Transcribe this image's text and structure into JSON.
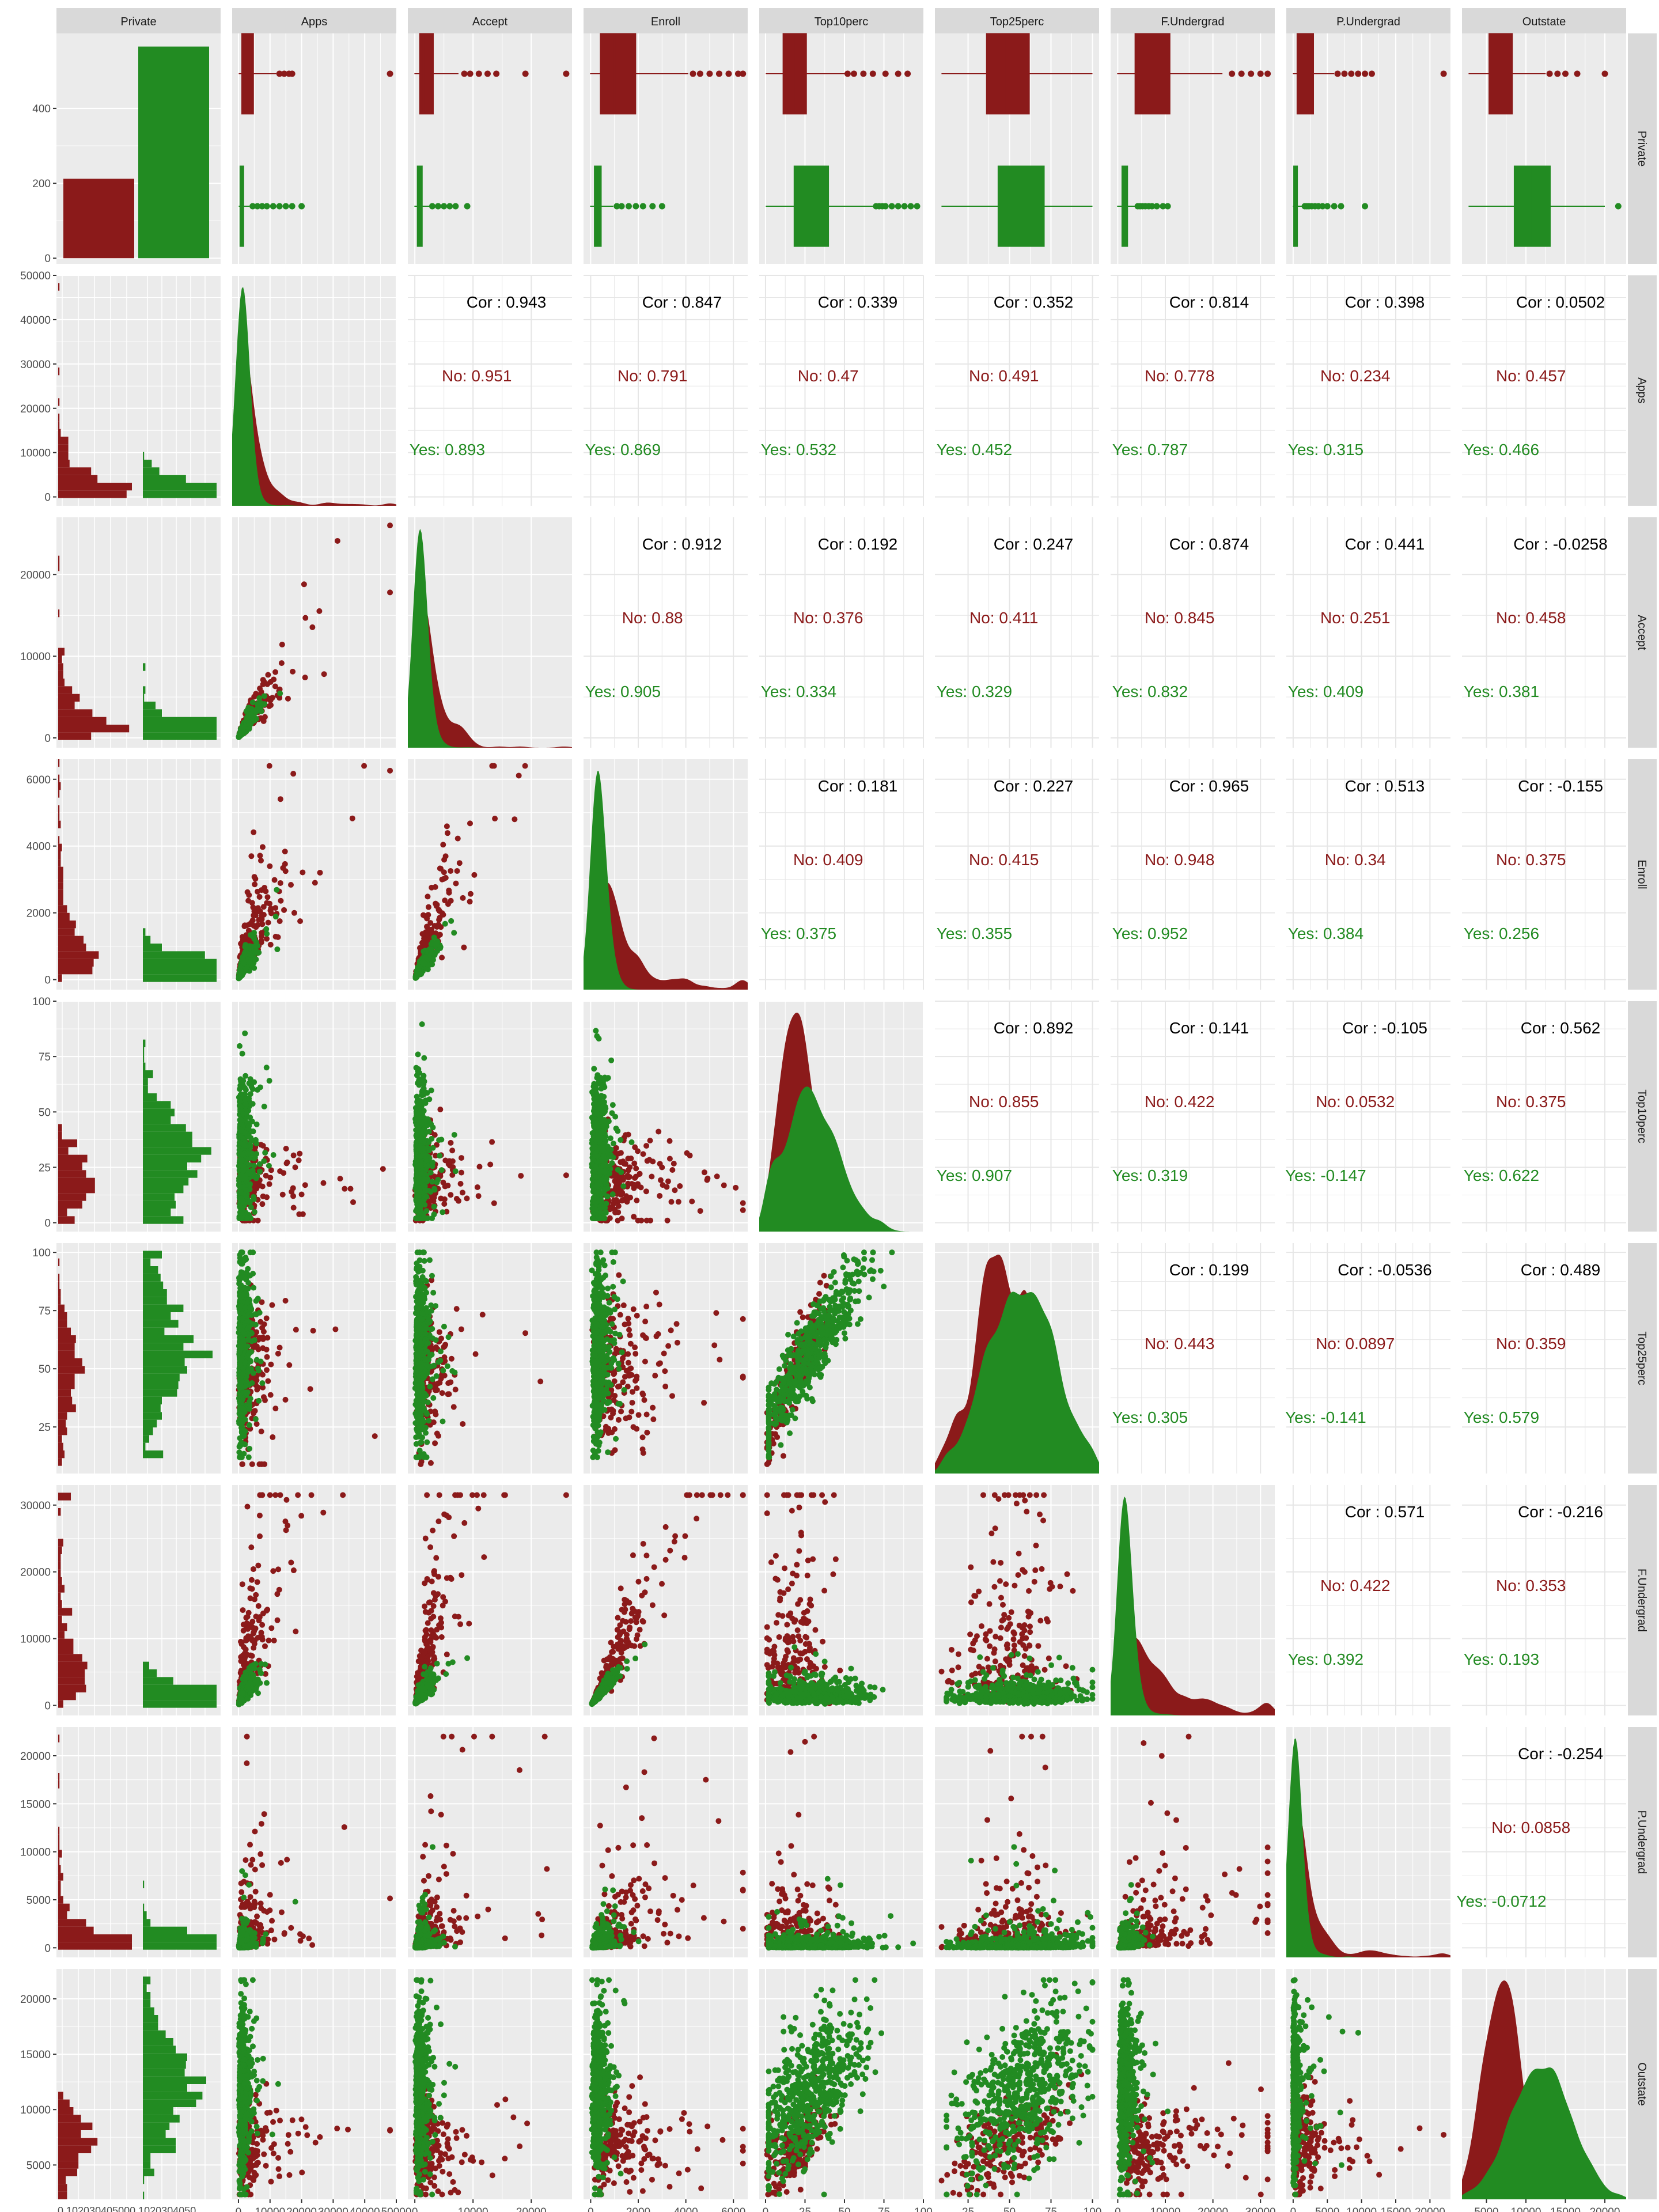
{
  "colors": {
    "no": "#8B1A1A",
    "yes": "#228B22",
    "panel_bg": "#EBEBEB",
    "strip_bg": "#D9D9D9",
    "grid": "#FFFFFF",
    "text": "#4D4D4D"
  },
  "chart_data": {
    "type": "scatterplot-matrix",
    "variables": [
      "Private",
      "Apps",
      "Accept",
      "Enroll",
      "Top10perc",
      "Top25perc",
      "F.Undergrad",
      "P.Undergrad",
      "Outstate"
    ],
    "groups": [
      "No",
      "Yes"
    ],
    "group_colors": {
      "No": "#8B1A1A",
      "Yes": "#228B22"
    },
    "private_counts": {
      "No": 212,
      "Yes": 565
    },
    "row_axis": {
      "Private": {
        "ticks": [
          0,
          200,
          400
        ],
        "range": [
          -15,
          600
        ]
      },
      "Apps": {
        "ticks": [
          0,
          10000,
          20000,
          30000,
          40000,
          50000
        ],
        "range": [
          -2000,
          50000
        ]
      },
      "Accept": {
        "ticks": [
          0,
          10000,
          20000
        ],
        "range": [
          -1200,
          27000
        ]
      },
      "Enroll": {
        "ticks": [
          0,
          2000,
          4000,
          6000
        ],
        "range": [
          -300,
          6600
        ]
      },
      "Top10perc": {
        "ticks": [
          0,
          25,
          50,
          75,
          100
        ],
        "range": [
          -4,
          100
        ]
      },
      "Top25perc": {
        "ticks": [
          25,
          50,
          75,
          100
        ],
        "range": [
          5,
          104
        ]
      },
      "F.Undergrad": {
        "ticks": [
          0,
          10000,
          20000,
          30000
        ],
        "range": [
          -1500,
          33000
        ]
      },
      "P.Undergrad": {
        "ticks": [
          0,
          5000,
          10000,
          15000,
          20000
        ],
        "range": [
          -1000,
          23000
        ]
      },
      "Outstate": {
        "ticks": [
          5000,
          10000,
          15000,
          20000
        ],
        "range": [
          1900,
          22700
        ]
      }
    },
    "col_axis": {
      "Private": {
        "tick_label_text": "0 102030405000 1020304050"
      },
      "Apps": {
        "ticks": [
          0,
          10000,
          20000,
          30000,
          40000,
          50000
        ],
        "labels": [
          "0",
          "10000",
          "20000",
          "30000",
          "40000",
          "50000"
        ],
        "range": [
          -2000,
          50000
        ]
      },
      "Accept": {
        "ticks": [
          0,
          10000,
          20000
        ],
        "labels": [
          "0",
          "10000",
          "20000"
        ],
        "range": [
          -1200,
          27000
        ]
      },
      "Enroll": {
        "ticks": [
          0,
          2000,
          4000,
          6000
        ],
        "labels": [
          "0",
          "2000",
          "4000",
          "6000"
        ],
        "range": [
          -300,
          6600
        ]
      },
      "Top10perc": {
        "ticks": [
          0,
          25,
          50,
          75,
          100
        ],
        "labels": [
          "0",
          "25",
          "50",
          "75",
          "100"
        ],
        "range": [
          -4,
          100
        ]
      },
      "Top25perc": {
        "ticks": [
          25,
          50,
          75,
          100
        ],
        "labels": [
          "25",
          "50",
          "75",
          "100"
        ],
        "range": [
          5,
          104
        ]
      },
      "F.Undergrad": {
        "ticks": [
          0,
          10000,
          20000,
          30000
        ],
        "labels": [
          "0",
          "10000",
          "20000",
          "30000"
        ],
        "range": [
          -1500,
          33000
        ]
      },
      "P.Undergrad": {
        "ticks": [
          0,
          5000,
          10000,
          15000,
          20000
        ],
        "labels": [
          "0",
          "5000",
          "10000",
          "15000",
          "20000"
        ],
        "range": [
          -1000,
          23000
        ]
      },
      "Outstate": {
        "ticks": [
          5000,
          10000,
          15000,
          20000
        ],
        "labels": [
          "5000",
          "10000",
          "15000",
          "20000"
        ],
        "range": [
          1900,
          22700
        ]
      }
    },
    "correlations": [
      {
        "row": 1,
        "col": 2,
        "cor": "Cor : 0.943",
        "no": "No: 0.951",
        "yes": "Yes: 0.893"
      },
      {
        "row": 1,
        "col": 3,
        "cor": "Cor : 0.847",
        "no": "No: 0.791",
        "yes": "Yes: 0.869"
      },
      {
        "row": 1,
        "col": 4,
        "cor": "Cor : 0.339",
        "no": "No: 0.47",
        "yes": "Yes: 0.532"
      },
      {
        "row": 1,
        "col": 5,
        "cor": "Cor : 0.352",
        "no": "No: 0.491",
        "yes": "Yes: 0.452"
      },
      {
        "row": 1,
        "col": 6,
        "cor": "Cor : 0.814",
        "no": "No: 0.778",
        "yes": "Yes: 0.787"
      },
      {
        "row": 1,
        "col": 7,
        "cor": "Cor : 0.398",
        "no": "No: 0.234",
        "yes": "Yes: 0.315"
      },
      {
        "row": 1,
        "col": 8,
        "cor": "Cor : 0.0502",
        "no": "No: 0.457",
        "yes": "Yes: 0.466"
      },
      {
        "row": 2,
        "col": 3,
        "cor": "Cor : 0.912",
        "no": "No: 0.88",
        "yes": "Yes: 0.905"
      },
      {
        "row": 2,
        "col": 4,
        "cor": "Cor : 0.192",
        "no": "No: 0.376",
        "yes": "Yes: 0.334"
      },
      {
        "row": 2,
        "col": 5,
        "cor": "Cor : 0.247",
        "no": "No: 0.411",
        "yes": "Yes: 0.329"
      },
      {
        "row": 2,
        "col": 6,
        "cor": "Cor : 0.874",
        "no": "No: 0.845",
        "yes": "Yes: 0.832"
      },
      {
        "row": 2,
        "col": 7,
        "cor": "Cor : 0.441",
        "no": "No: 0.251",
        "yes": "Yes: 0.409"
      },
      {
        "row": 2,
        "col": 8,
        "cor": "Cor : -0.0258",
        "no": "No: 0.458",
        "yes": "Yes: 0.381"
      },
      {
        "row": 3,
        "col": 4,
        "cor": "Cor : 0.181",
        "no": "No: 0.409",
        "yes": "Yes: 0.375"
      },
      {
        "row": 3,
        "col": 5,
        "cor": "Cor : 0.227",
        "no": "No: 0.415",
        "yes": "Yes: 0.355"
      },
      {
        "row": 3,
        "col": 6,
        "cor": "Cor : 0.965",
        "no": "No: 0.948",
        "yes": "Yes: 0.952"
      },
      {
        "row": 3,
        "col": 7,
        "cor": "Cor : 0.513",
        "no": "No: 0.34",
        "yes": "Yes: 0.384"
      },
      {
        "row": 3,
        "col": 8,
        "cor": "Cor : -0.155",
        "no": "No: 0.375",
        "yes": "Yes: 0.256"
      },
      {
        "row": 4,
        "col": 5,
        "cor": "Cor : 0.892",
        "no": "No: 0.855",
        "yes": "Yes: 0.907"
      },
      {
        "row": 4,
        "col": 6,
        "cor": "Cor : 0.141",
        "no": "No: 0.422",
        "yes": "Yes: 0.319"
      },
      {
        "row": 4,
        "col": 7,
        "cor": "Cor : -0.105",
        "no": "No: 0.0532",
        "yes": "Yes: -0.147"
      },
      {
        "row": 4,
        "col": 8,
        "cor": "Cor : 0.562",
        "no": "No: 0.375",
        "yes": "Yes: 0.622"
      },
      {
        "row": 5,
        "col": 6,
        "cor": "Cor : 0.199",
        "no": "No: 0.443",
        "yes": "Yes: 0.305"
      },
      {
        "row": 5,
        "col": 7,
        "cor": "Cor : -0.0536",
        "no": "No: 0.0897",
        "yes": "Yes: -0.141"
      },
      {
        "row": 5,
        "col": 8,
        "cor": "Cor : 0.489",
        "no": "No: 0.359",
        "yes": "Yes: 0.579"
      },
      {
        "row": 6,
        "col": 7,
        "cor": "Cor : 0.571",
        "no": "No: 0.422",
        "yes": "Yes: 0.392"
      },
      {
        "row": 6,
        "col": 8,
        "cor": "Cor : -0.216",
        "no": "No: 0.353",
        "yes": "Yes: 0.193"
      },
      {
        "row": 7,
        "col": 8,
        "cor": "Cor : -0.254",
        "no": "No: 0.0858",
        "yes": "Yes: -0.0712"
      }
    ],
    "summary": {
      "Apps": {
        "No": {
          "q1": 1000,
          "med": 1800,
          "q3": 4800,
          "max": 12000,
          "out": [
            13000,
            14500,
            16000,
            17000,
            48000
          ]
        },
        "Yes": {
          "q1": 450,
          "med": 900,
          "q3": 1700,
          "max": 3500,
          "out": [
            4500,
            6000,
            7500,
            9000,
            11000,
            13000,
            15000,
            17000,
            20000
          ]
        }
      },
      "Accept": {
        "No": {
          "q1": 800,
          "med": 1500,
          "q3": 3200,
          "max": 7500,
          "out": [
            8500,
            9500,
            11000,
            12500,
            14000,
            19000,
            26000
          ]
        },
        "Yes": {
          "q1": 400,
          "med": 700,
          "q3": 1300,
          "max": 2600,
          "out": [
            3000,
            4000,
            5000,
            6000,
            7000,
            9000
          ]
        }
      },
      "Enroll": {
        "No": {
          "q1": 400,
          "med": 1000,
          "q3": 1900,
          "max": 4100,
          "out": [
            4300,
            4600,
            5000,
            5400,
            5800,
            6200,
            6400
          ]
        },
        "Yes": {
          "q1": 150,
          "med": 250,
          "q3": 450,
          "max": 950,
          "out": [
            1100,
            1300,
            1600,
            1900,
            2200,
            2600,
            3000
          ]
        }
      },
      "Top10perc": {
        "No": {
          "q1": 11,
          "med": 18,
          "q3": 26,
          "max": 50,
          "out": [
            52,
            56,
            62,
            68,
            76,
            84,
            90
          ]
        },
        "Yes": {
          "q1": 18,
          "med": 26,
          "q3": 40,
          "max": 68,
          "out": [
            70,
            72,
            74,
            76,
            80,
            84,
            88,
            92,
            96
          ]
        }
      },
      "Top25perc": {
        "No": {
          "q1": 36,
          "med": 48,
          "q3": 62,
          "max": 100,
          "out": []
        },
        "Yes": {
          "q1": 43,
          "med": 58,
          "q3": 71,
          "max": 100,
          "out": []
        }
      },
      "F.Undergrad": {
        "No": {
          "q1": 3600,
          "med": 6500,
          "q3": 11000,
          "max": 22000,
          "out": [
            24000,
            26000,
            28000,
            30000,
            31500
          ]
        },
        "Yes": {
          "q1": 850,
          "med": 1300,
          "q3": 2100,
          "max": 3900,
          "out": [
            4200,
            4700,
            5200,
            5800,
            6500,
            7200,
            8200,
            9500,
            10500
          ]
        }
      },
      "P.Undergrad": {
        "No": {
          "q1": 550,
          "med": 1400,
          "q3": 3000,
          "max": 6000,
          "out": [
            6500,
            7500,
            8500,
            9500,
            10500,
            11500,
            22000
          ]
        },
        "Yes": {
          "q1": 60,
          "med": 200,
          "q3": 650,
          "max": 1500,
          "out": [
            1700,
            2000,
            2300,
            2700,
            3200,
            3700,
            4300,
            5000,
            6000,
            7000,
            10500
          ]
        }
      },
      "Outstate": {
        "No": {
          "q1": 5300,
          "med": 6700,
          "q3": 8300,
          "max": 12500,
          "out": [
            13000,
            14000,
            15000,
            16500,
            20000
          ]
        },
        "Yes": {
          "q1": 8500,
          "med": 10800,
          "q3": 13100,
          "max": 20000,
          "out": [
            21700
          ]
        }
      }
    }
  }
}
